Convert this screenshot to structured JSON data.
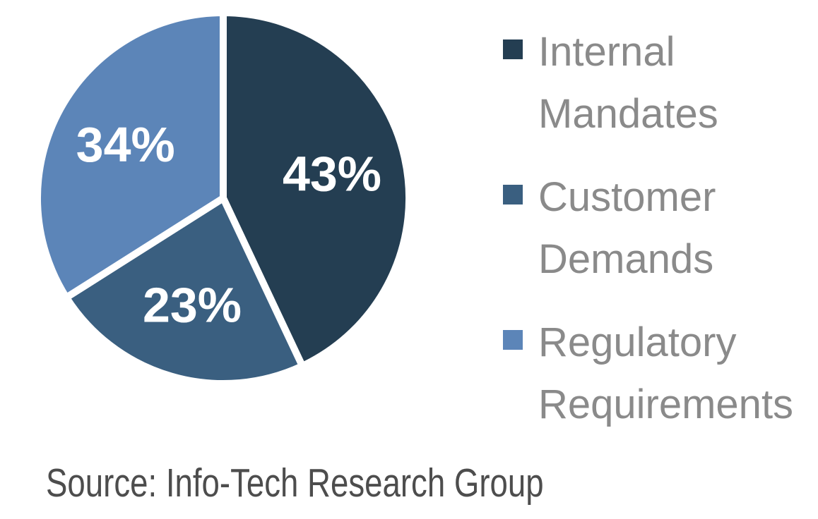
{
  "chart_data": {
    "type": "pie",
    "title": "",
    "categories": [
      "Internal Mandates",
      "Customer Demands",
      "Regulatory Requirements"
    ],
    "values": [
      43,
      23,
      34
    ],
    "data_labels": [
      "43%",
      "23%",
      "34%"
    ],
    "colors": [
      "#243e52",
      "#3a5f80",
      "#5c85b8"
    ],
    "start_angle_deg": 0,
    "direction": "clockwise",
    "slice_separator_color": "#ffffff",
    "data_label_color": "#ffffff",
    "legend_position": "right",
    "legend_text_color": "#8a8a8a"
  },
  "footer": {
    "source_text": "Source: Info-Tech Research Group",
    "color": "#4d4d4d"
  }
}
